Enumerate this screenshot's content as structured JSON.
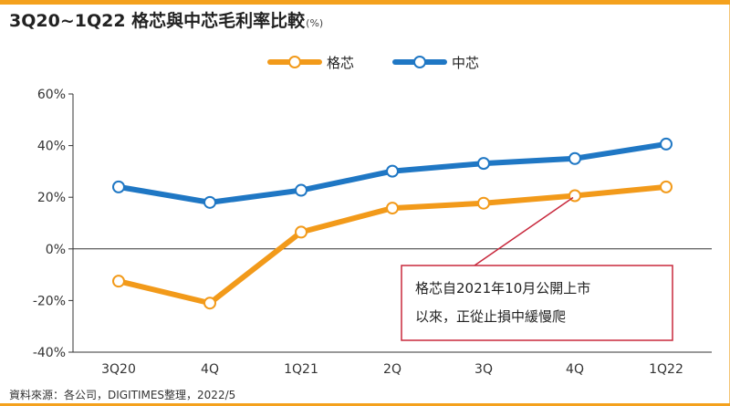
{
  "header": {
    "title": "3Q20~1Q22 格芯與中芯毛利率比較",
    "unit": "(%)"
  },
  "footer": {
    "source": "資料來源：各公司，DIGITIMES整理，2022/5"
  },
  "colors": {
    "accent": "#f4a11d",
    "gf": "#f29a1a",
    "smic": "#1f77c4",
    "annotation_border": "#c8283c"
  },
  "annotation": {
    "line1": "格芯自2021年10月公開上市",
    "line2": "以來，正從止損中緩慢爬"
  },
  "chart_data": {
    "type": "line",
    "categories": [
      "3Q20",
      "4Q",
      "1Q21",
      "2Q",
      "3Q",
      "4Q",
      "1Q22"
    ],
    "ylim": [
      -40,
      60
    ],
    "yticks": [
      -40,
      -20,
      0,
      20,
      40,
      60
    ],
    "ytick_labels": [
      "-40%",
      "-20%",
      "0%",
      "20%",
      "40%",
      "60%"
    ],
    "series": [
      {
        "name": "格芯",
        "color": "#f29a1a",
        "values": [
          -12.5,
          -21,
          6.5,
          15.8,
          17.7,
          20.6,
          24
        ]
      },
      {
        "name": "中芯",
        "color": "#1f77c4",
        "values": [
          24,
          18,
          22.7,
          30.1,
          33.1,
          35,
          40.6
        ]
      }
    ],
    "legend_position": "top"
  }
}
